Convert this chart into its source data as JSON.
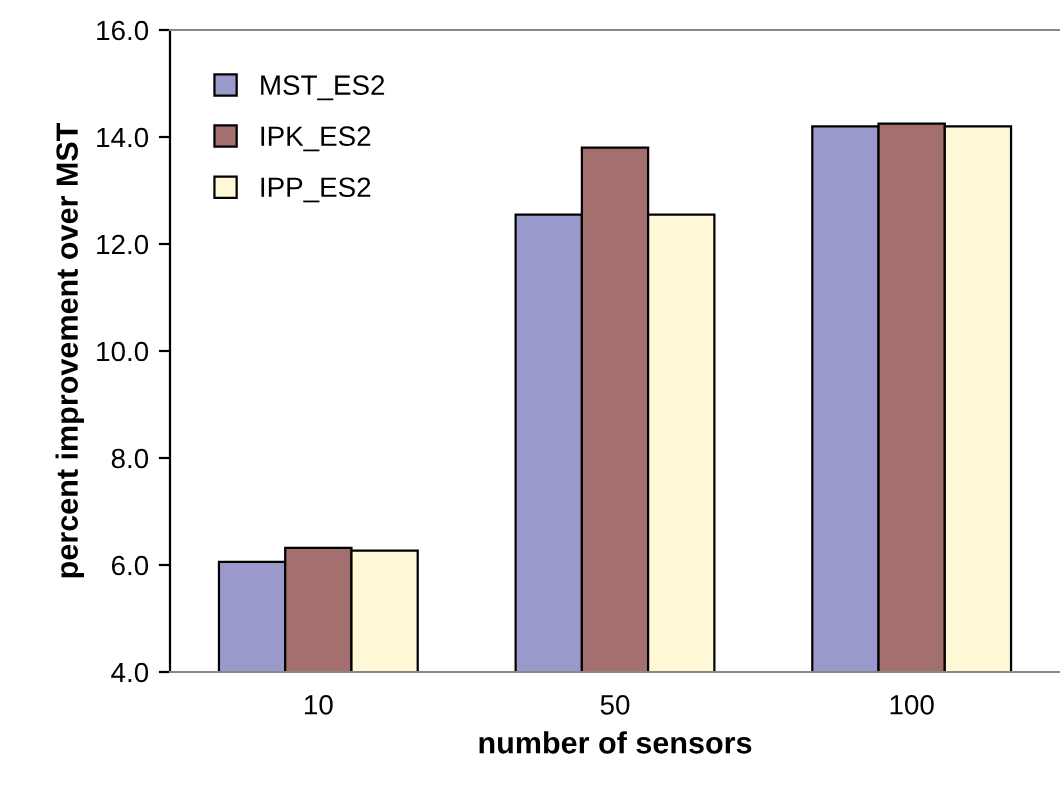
{
  "chart_data": {
    "type": "bar",
    "xlabel": "number of sensors",
    "ylabel": "percent improvement over MST",
    "categories": [
      "10",
      "50",
      "100"
    ],
    "series": [
      {
        "name": "MST_ES2",
        "color": "#9999cc",
        "values": [
          6.06,
          12.55,
          14.2
        ]
      },
      {
        "name": "IPK_ES2",
        "color": "#a36f6f",
        "values": [
          6.32,
          13.8,
          14.25
        ]
      },
      {
        "name": "IPP_ES2",
        "color": "#fff8d6",
        "values": [
          6.27,
          12.55,
          14.2
        ]
      }
    ],
    "ylim": [
      4,
      16
    ],
    "yticks": [
      {
        "value": 4,
        "label": "4.0"
      },
      {
        "value": 6,
        "label": "6.0"
      },
      {
        "value": 8,
        "label": "8.0"
      },
      {
        "value": 10,
        "label": "10.0"
      },
      {
        "value": 12,
        "label": "12.0"
      },
      {
        "value": 14,
        "label": "14.0"
      },
      {
        "value": 16,
        "label": "16.0"
      }
    ],
    "grid": false,
    "legend": "top left"
  }
}
